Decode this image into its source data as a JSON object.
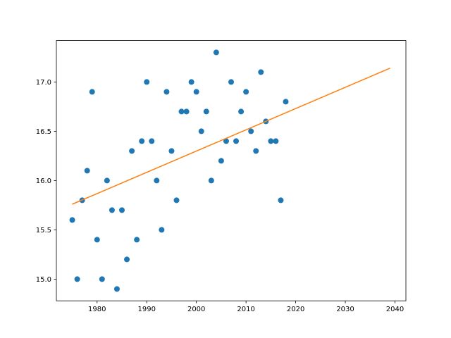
{
  "chart_data": {
    "type": "scatter",
    "series": [
      {
        "type": "scatter",
        "color": "#1f77b4",
        "x": [
          1975,
          1976,
          1977,
          1978,
          1979,
          1980,
          1981,
          1982,
          1983,
          1984,
          1985,
          1986,
          1987,
          1988,
          1989,
          1990,
          1991,
          1992,
          1993,
          1994,
          1995,
          1996,
          1997,
          1998,
          1999,
          2000,
          2001,
          2002,
          2003,
          2004,
          2005,
          2006,
          2007,
          2008,
          2009,
          2010,
          2011,
          2012,
          2013,
          2014,
          2015,
          2016,
          2017,
          2018
        ],
        "values": [
          15.6,
          15.0,
          15.8,
          16.1,
          16.9,
          15.4,
          15.0,
          16.0,
          15.7,
          14.9,
          15.7,
          15.2,
          16.3,
          15.4,
          16.4,
          17.0,
          16.4,
          16.0,
          15.5,
          16.9,
          16.3,
          15.8,
          16.7,
          16.7,
          17.0,
          16.9,
          16.5,
          16.7,
          16.0,
          17.3,
          16.2,
          16.4,
          17.0,
          16.4,
          16.7,
          16.9,
          16.5,
          16.3,
          17.1,
          16.6,
          16.4,
          16.4,
          15.8,
          16.8
        ]
      },
      {
        "type": "line",
        "color": "#ff7f0e",
        "x": [
          1975,
          2039
        ],
        "values": [
          15.76,
          17.14
        ]
      }
    ],
    "xlim": [
      1971.8,
      2042.2
    ],
    "ylim": [
      14.78,
      17.42
    ],
    "xticks": [
      1980,
      1990,
      2000,
      2010,
      2020,
      2030,
      2040
    ],
    "yticks": [
      {
        "value": 15,
        "label": "15.0"
      },
      {
        "value": 15.5,
        "label": "15.5"
      },
      {
        "value": 16,
        "label": "16.0"
      },
      {
        "value": 16.5,
        "label": "16.5"
      },
      {
        "value": 17,
        "label": "17.0"
      }
    ]
  }
}
